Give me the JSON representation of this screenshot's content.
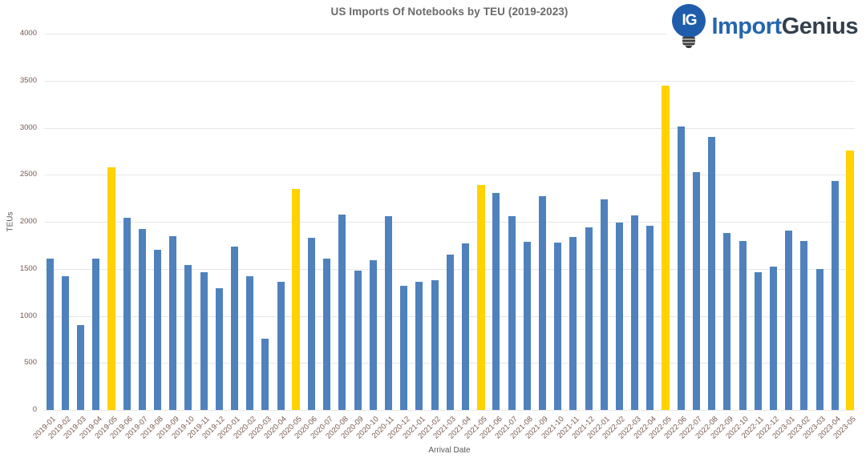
{
  "chart": {
    "title": "US Imports Of Notebooks by TEU (2019-2023)",
    "xlabel": "Arrival Date",
    "ylabel": "TEUs"
  },
  "logo": {
    "icon_text": "IG",
    "text_primary": "Import",
    "text_secondary": "Genius"
  },
  "chart_data": {
    "type": "bar",
    "title": "US Imports Of Notebooks by TEU (2019-2023)",
    "xlabel": "Arrival Date",
    "ylabel": "TEUs",
    "ylim": [
      0,
      4000
    ],
    "ytick_step": 500,
    "grid": true,
    "legend": "none",
    "categories": [
      "2019-01",
      "2019-02",
      "2019-03",
      "2019-04",
      "2019-05",
      "2019-06",
      "2019-07",
      "2019-08",
      "2019-09",
      "2019-10",
      "2019-11",
      "2019-12",
      "2020-01",
      "2020-02",
      "2020-03",
      "2020-04",
      "2020-05",
      "2020-06",
      "2020-07",
      "2020-08",
      "2020-09",
      "2020-10",
      "2020-11",
      "2020-12",
      "2021-01",
      "2021-02",
      "2021-03",
      "2021-04",
      "2021-05",
      "2021-06",
      "2021-07",
      "2021-08",
      "2021-09",
      "2021-10",
      "2021-11",
      "2021-12",
      "2022-01",
      "2022-02",
      "2022-03",
      "2022-04",
      "2022-05",
      "2022-06",
      "2022-07",
      "2022-08",
      "2022-09",
      "2022-10",
      "2022-11",
      "2022-12",
      "2023-01",
      "2023-02",
      "2023-03",
      "2023-04",
      "2023-05"
    ],
    "values": [
      1610,
      1420,
      900,
      1610,
      2580,
      2040,
      1920,
      1700,
      1850,
      1540,
      1460,
      1290,
      1740,
      1420,
      760,
      1360,
      2350,
      1830,
      1610,
      2080,
      1480,
      1590,
      2060,
      1320,
      1360,
      1380,
      1650,
      1770,
      2390,
      2310,
      2060,
      1790,
      2270,
      1780,
      1840,
      1940,
      2240,
      1990,
      2070,
      1960,
      3450,
      3010,
      2530,
      2900,
      1880,
      1800,
      1460,
      1520,
      1910,
      1800,
      1500,
      2430,
      2760
    ],
    "highlighted_categories": [
      "2019-05",
      "2020-05",
      "2021-05",
      "2022-05",
      "2023-05"
    ],
    "colors": {
      "bar": "#4f81bd",
      "highlight": "#ffd200",
      "gridline": "#e7e7e7",
      "tick_text": "#77584e",
      "title_text": "#6a6a6a"
    }
  }
}
